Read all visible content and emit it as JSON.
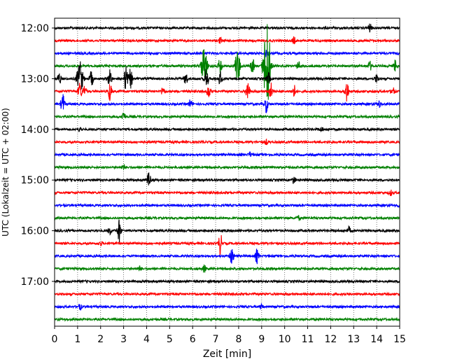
{
  "chart_data": {
    "type": "line",
    "xlabel": "Zeit  [min]",
    "ylabel": "UTC (Lokalzeit = UTC + 02:00)",
    "xlim": [
      0,
      15
    ],
    "x_ticks": [
      "0",
      "1",
      "2",
      "3",
      "4",
      "5",
      "6",
      "7",
      "8",
      "9",
      "10",
      "11",
      "12",
      "13",
      "14",
      "15"
    ],
    "y_ticks": [
      "12:00",
      "13:00",
      "14:00",
      "15:00",
      "16:00",
      "17:00"
    ],
    "grid": "vertical-dotted",
    "trace_interval_min": 15,
    "trace_colors": [
      "#000000",
      "#ff0000",
      "#0000ff",
      "#008000"
    ],
    "traces": [
      {
        "start": "12:00",
        "color": "#000000",
        "events": [
          {
            "t": 13.7,
            "amp": 6
          }
        ]
      },
      {
        "start": "12:15",
        "color": "#ff0000",
        "events": [
          {
            "t": 7.2,
            "amp": 4
          },
          {
            "t": 10.4,
            "amp": 5
          }
        ]
      },
      {
        "start": "12:30",
        "color": "#0000ff",
        "events": [
          {
            "t": 9.2,
            "amp": 5
          }
        ]
      },
      {
        "start": "12:45",
        "color": "#008000",
        "events": [
          {
            "t": 6.5,
            "amp": 28
          },
          {
            "t": 7.2,
            "amp": 14
          },
          {
            "t": 7.9,
            "amp": 16
          },
          {
            "t": 8.0,
            "amp": 18
          },
          {
            "t": 8.6,
            "amp": 12
          },
          {
            "t": 9.1,
            "amp": 18
          },
          {
            "t": 9.25,
            "amp": 65
          },
          {
            "t": 10.6,
            "amp": 6
          },
          {
            "t": 13.7,
            "amp": 7
          },
          {
            "t": 14.8,
            "amp": 8
          }
        ]
      },
      {
        "start": "13:00",
        "color": "#000000",
        "events": [
          {
            "t": 0.2,
            "amp": 9
          },
          {
            "t": 1.1,
            "amp": 25
          },
          {
            "t": 1.6,
            "amp": 12
          },
          {
            "t": 2.4,
            "amp": 16
          },
          {
            "t": 3.3,
            "amp": 14
          },
          {
            "t": 3.1,
            "amp": 20
          },
          {
            "t": 5.7,
            "amp": 10
          },
          {
            "t": 6.6,
            "amp": 18
          },
          {
            "t": 7.2,
            "amp": 10
          },
          {
            "t": 9.3,
            "amp": 8
          },
          {
            "t": 14.0,
            "amp": 6
          }
        ]
      },
      {
        "start": "13:15",
        "color": "#ff0000",
        "events": [
          {
            "t": 1.1,
            "amp": 14
          },
          {
            "t": 1.3,
            "amp": 8
          },
          {
            "t": 2.4,
            "amp": 14
          },
          {
            "t": 4.7,
            "amp": 6
          },
          {
            "t": 6.7,
            "amp": 10
          },
          {
            "t": 8.4,
            "amp": 16
          },
          {
            "t": 9.4,
            "amp": 12
          },
          {
            "t": 10.4,
            "amp": 10
          },
          {
            "t": 12.7,
            "amp": 18
          },
          {
            "t": 14.7,
            "amp": 6
          }
        ]
      },
      {
        "start": "13:30",
        "color": "#0000ff",
        "events": [
          {
            "t": 0.35,
            "amp": 16
          },
          {
            "t": 5.9,
            "amp": 6
          },
          {
            "t": 9.2,
            "amp": 12
          },
          {
            "t": 14.1,
            "amp": 5
          }
        ]
      },
      {
        "start": "13:45",
        "color": "#008000",
        "events": [
          {
            "t": 3.0,
            "amp": 8
          }
        ]
      },
      {
        "start": "14:00",
        "color": "#000000",
        "events": [
          {
            "t": 1.1,
            "amp": 3
          },
          {
            "t": 11.6,
            "amp": 3
          }
        ]
      },
      {
        "start": "14:15",
        "color": "#ff0000",
        "events": [
          {
            "t": 9.2,
            "amp": 3
          }
        ]
      },
      {
        "start": "14:30",
        "color": "#0000ff",
        "events": [
          {
            "t": 8.5,
            "amp": 3
          }
        ]
      },
      {
        "start": "14:45",
        "color": "#008000",
        "events": [
          {
            "t": 3.0,
            "amp": 3
          }
        ]
      },
      {
        "start": "15:00",
        "color": "#000000",
        "events": [
          {
            "t": 4.1,
            "amp": 12
          },
          {
            "t": 10.4,
            "amp": 5
          }
        ]
      },
      {
        "start": "15:15",
        "color": "#ff0000",
        "events": [
          {
            "t": 14.6,
            "amp": 4
          }
        ]
      },
      {
        "start": "15:30",
        "color": "#0000ff",
        "events": [
          {
            "t": 15.0,
            "amp": 5
          }
        ]
      },
      {
        "start": "15:45",
        "color": "#008000",
        "events": [
          {
            "t": 10.6,
            "amp": 3
          }
        ]
      },
      {
        "start": "16:00",
        "color": "#000000",
        "events": [
          {
            "t": 2.4,
            "amp": 5
          },
          {
            "t": 2.8,
            "amp": 18
          },
          {
            "t": 12.8,
            "amp": 5
          }
        ]
      },
      {
        "start": "16:15",
        "color": "#ff0000",
        "events": [
          {
            "t": 2.0,
            "amp": 3
          },
          {
            "t": 7.2,
            "amp": 16
          }
        ]
      },
      {
        "start": "16:30",
        "color": "#0000ff",
        "events": [
          {
            "t": 7.7,
            "amp": 14
          },
          {
            "t": 8.8,
            "amp": 10
          }
        ]
      },
      {
        "start": "16:45",
        "color": "#008000",
        "events": [
          {
            "t": 3.7,
            "amp": 3
          },
          {
            "t": 6.5,
            "amp": 5
          }
        ]
      },
      {
        "start": "17:00",
        "color": "#000000",
        "events": []
      },
      {
        "start": "17:15",
        "color": "#ff0000",
        "events": []
      },
      {
        "start": "17:30",
        "color": "#0000ff",
        "events": [
          {
            "t": 1.1,
            "amp": 4
          },
          {
            "t": 9.0,
            "amp": 3
          }
        ]
      },
      {
        "start": "17:45",
        "color": "#008000",
        "events": []
      }
    ]
  }
}
